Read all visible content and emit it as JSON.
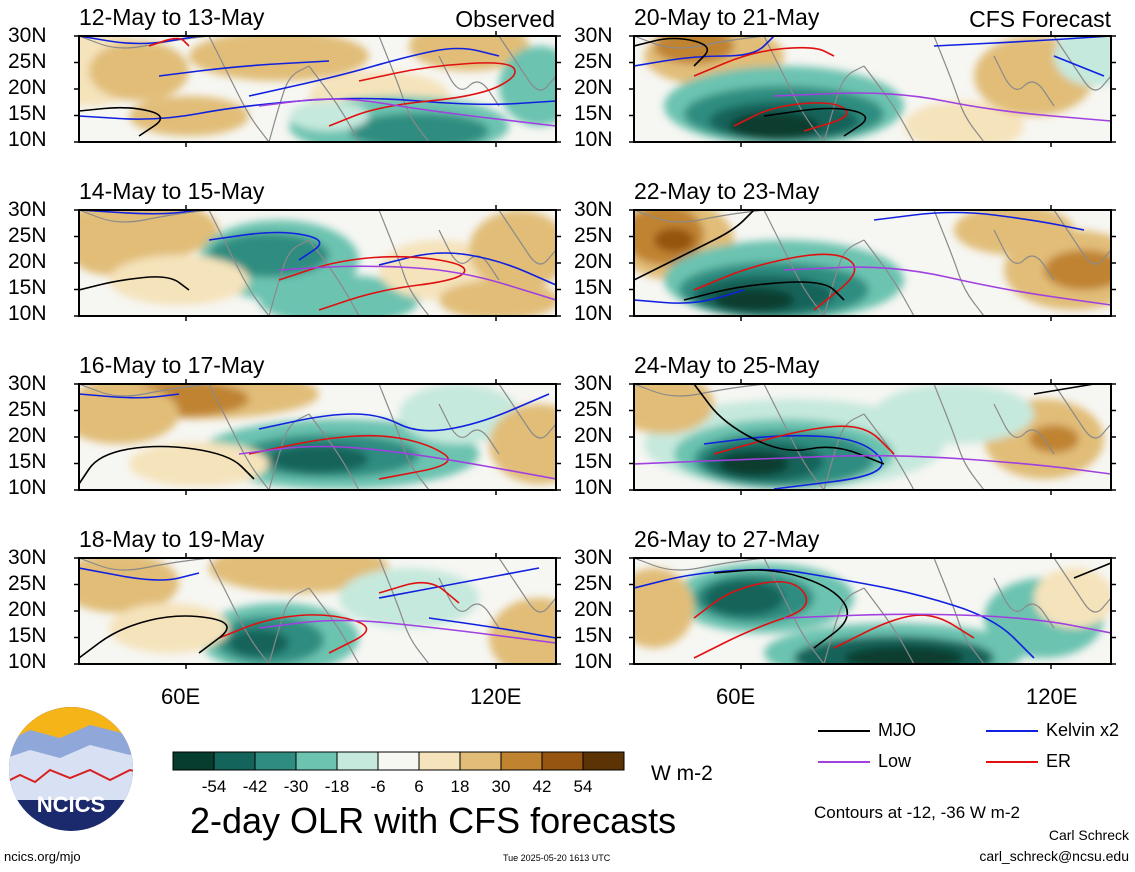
{
  "left_column": {
    "label": "Observed",
    "panels": [
      {
        "title": "12-May to 13-May"
      },
      {
        "title": "14-May to 15-May"
      },
      {
        "title": "16-May to 17-May"
      },
      {
        "title": "18-May to 19-May"
      }
    ]
  },
  "right_column": {
    "label": "CFS Forecast",
    "panels": [
      {
        "title": "20-May to 21-May"
      },
      {
        "title": "22-May to 23-May"
      },
      {
        "title": "24-May to 25-May"
      },
      {
        "title": "26-May to 27-May"
      }
    ]
  },
  "lat_labels": [
    "30N",
    "25N",
    "20N",
    "15N",
    "10N"
  ],
  "lon_labels": [
    "60E",
    "120E"
  ],
  "colorbar": {
    "ticks": [
      "-54",
      "-42",
      "-30",
      "-18",
      "-6",
      "6",
      "18",
      "30",
      "42",
      "54"
    ],
    "colors": [
      "#073d2e",
      "#13645a",
      "#2e8d80",
      "#6cc3b0",
      "#c6e9dd",
      "#f6f6f2",
      "#f5e3bb",
      "#e1bd78",
      "#c08330",
      "#965510",
      "#5c3305"
    ],
    "units": "W m-2"
  },
  "legend": {
    "mjo": {
      "label": "MJO",
      "color": "#000000"
    },
    "kelvin": {
      "label": "Kelvin x2",
      "color": "#1020e0"
    },
    "low": {
      "label": "Low",
      "color": "#a040e0"
    },
    "er": {
      "label": "ER",
      "color": "#e01010"
    }
  },
  "title": "2-day OLR with CFS forecasts",
  "contours_note": "Contours at -12, -36 W m-2",
  "logo": {
    "text": "NCICS"
  },
  "site": "ncics.org/mjo",
  "timestamp": "Tue 2025-05-20 1613 UTC",
  "author": "Carl Schreck",
  "email": "carl_schreck@ncsu.edu"
}
